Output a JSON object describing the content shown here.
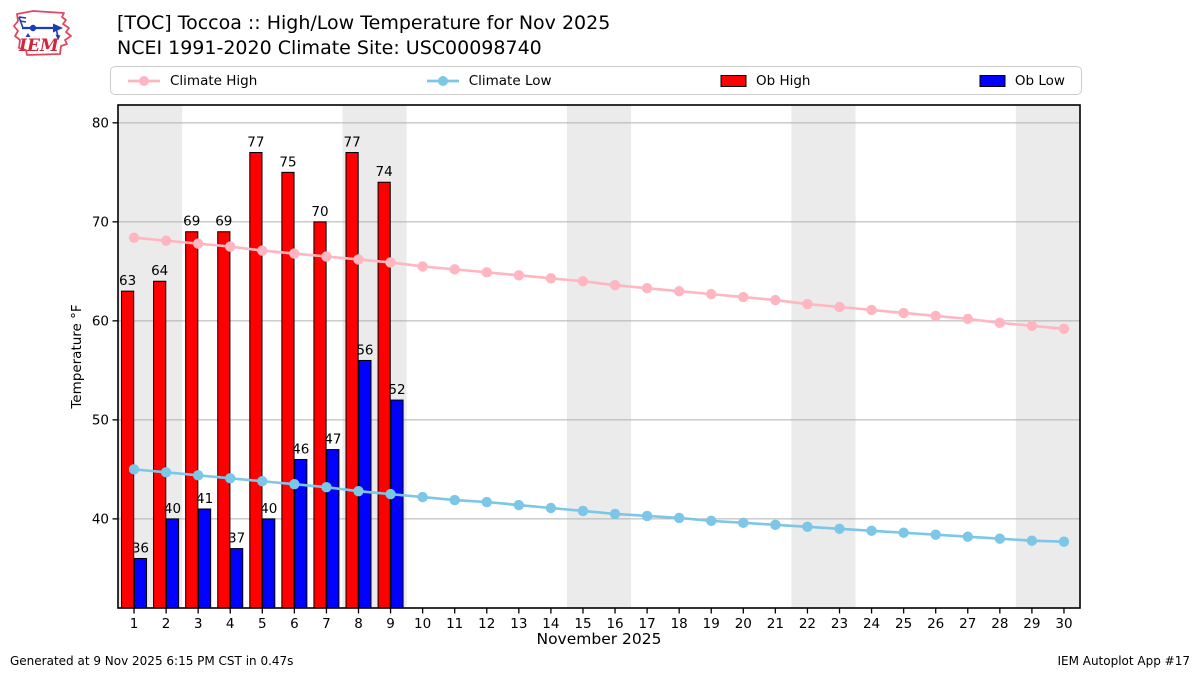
{
  "header": {
    "title": "[TOC] Toccoa :: High/Low Temperature for Nov 2025",
    "subtitle": "NCEI 1991-2020 Climate Site: USC00098740",
    "logo_text": "IEM"
  },
  "legend": {
    "items": [
      {
        "label": "Climate High",
        "swatch": "line",
        "color": "#ffb6c1"
      },
      {
        "label": "Climate Low",
        "swatch": "line",
        "color": "#7cc7e8"
      },
      {
        "label": "Ob High",
        "swatch": "bar",
        "color": "#ff0000"
      },
      {
        "label": "Ob Low",
        "swatch": "bar",
        "color": "#0000ff"
      }
    ]
  },
  "chart_data": {
    "type": "bar",
    "title": "[TOC] Toccoa :: High/Low Temperature for Nov 2025",
    "subtitle": "NCEI 1991-2020 Climate Site: USC00098740",
    "xlabel": "November 2025",
    "ylabel": "Temperature °F",
    "x_days": [
      1,
      2,
      3,
      4,
      5,
      6,
      7,
      8,
      9,
      10,
      11,
      12,
      13,
      14,
      15,
      16,
      17,
      18,
      19,
      20,
      21,
      22,
      23,
      24,
      25,
      26,
      27,
      28,
      29,
      30
    ],
    "xlim": [
      0.5,
      30.5
    ],
    "ylim": [
      31,
      81.8
    ],
    "yticks": [
      40,
      50,
      60,
      70,
      80
    ],
    "grid": "horizontal-only",
    "legend_position": "top",
    "weekend_bands": [
      [
        0.5,
        2.5
      ],
      [
        7.5,
        9.5
      ],
      [
        14.5,
        16.5
      ],
      [
        21.5,
        23.5
      ],
      [
        28.5,
        30.5
      ]
    ],
    "series": [
      {
        "name": "Ob High",
        "type": "bar",
        "color": "#ff0000",
        "edge": "#000000",
        "offset": -0.2,
        "days": [
          1,
          2,
          3,
          4,
          5,
          6,
          7,
          8,
          9
        ],
        "values": [
          63,
          64,
          69,
          69,
          77,
          75,
          70,
          77,
          74
        ]
      },
      {
        "name": "Ob Low",
        "type": "bar",
        "color": "#0000ff",
        "edge": "#000000",
        "offset": 0.2,
        "days": [
          1,
          2,
          3,
          4,
          5,
          6,
          7,
          8,
          9
        ],
        "values": [
          36,
          40,
          41,
          37,
          40,
          46,
          47,
          56,
          52
        ]
      },
      {
        "name": "Climate High",
        "type": "line",
        "color": "#ffb6c1",
        "days": [
          1,
          2,
          3,
          4,
          5,
          6,
          7,
          8,
          9,
          10,
          11,
          12,
          13,
          14,
          15,
          16,
          17,
          18,
          19,
          20,
          21,
          22,
          23,
          24,
          25,
          26,
          27,
          28,
          29,
          30
        ],
        "values": [
          68.4,
          68.1,
          67.8,
          67.5,
          67.1,
          66.8,
          66.5,
          66.2,
          65.9,
          65.5,
          65.2,
          64.9,
          64.6,
          64.3,
          64.0,
          63.6,
          63.3,
          63.0,
          62.7,
          62.4,
          62.1,
          61.7,
          61.4,
          61.1,
          60.8,
          60.5,
          60.2,
          59.8,
          59.5,
          59.2
        ]
      },
      {
        "name": "Climate Low",
        "type": "line",
        "color": "#7cc7e8",
        "days": [
          1,
          2,
          3,
          4,
          5,
          6,
          7,
          8,
          9,
          10,
          11,
          12,
          13,
          14,
          15,
          16,
          17,
          18,
          19,
          20,
          21,
          22,
          23,
          24,
          25,
          26,
          27,
          28,
          29,
          30
        ],
        "values": [
          45.0,
          44.7,
          44.4,
          44.1,
          43.8,
          43.5,
          43.2,
          42.8,
          42.5,
          42.2,
          41.9,
          41.7,
          41.4,
          41.1,
          40.8,
          40.5,
          40.3,
          40.1,
          39.8,
          39.6,
          39.4,
          39.2,
          39.0,
          38.8,
          38.6,
          38.4,
          38.2,
          38.0,
          37.8,
          37.7
        ]
      }
    ],
    "colors": {
      "weekend_band": "#ebebeb",
      "grid": "#b0b0b0",
      "frame": "#000000",
      "bar_label": "#000000"
    }
  },
  "footer": {
    "left": "Generated at 9 Nov 2025 6:15 PM CST in 0.47s",
    "right": "IEM Autoplot App #17"
  }
}
